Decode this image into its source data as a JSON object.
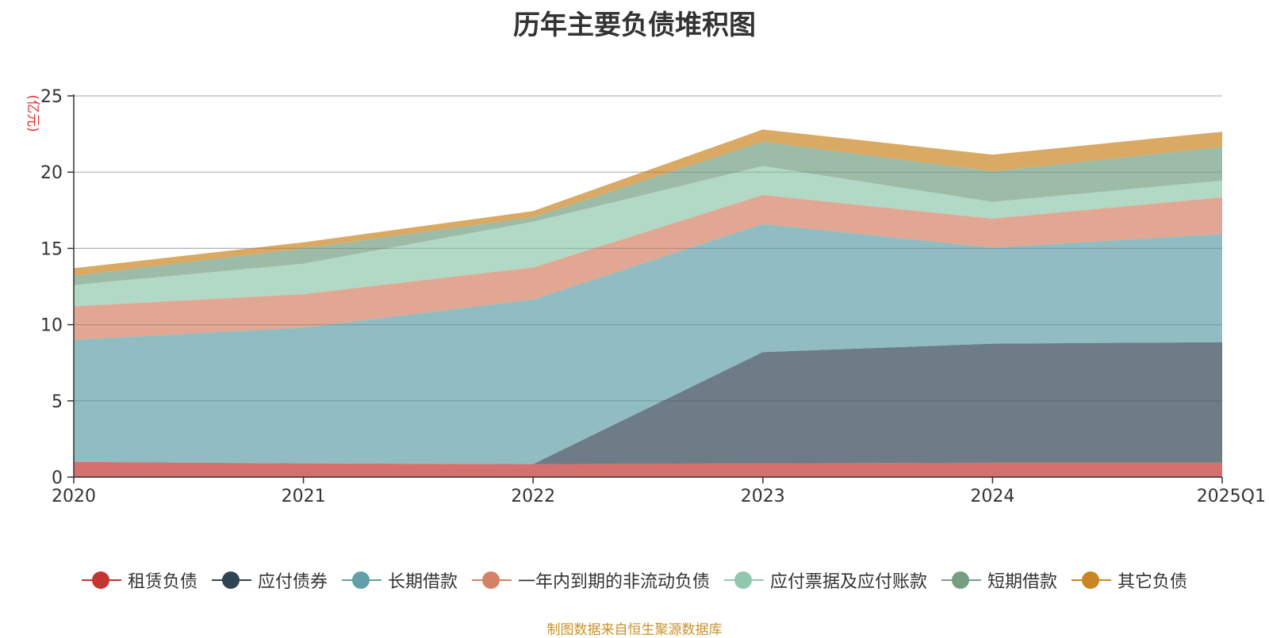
{
  "chart_data": {
    "type": "area",
    "stacked": true,
    "title": "历年主要负债堆积图",
    "ylabel": "(亿元)",
    "xlabel": "",
    "categories": [
      "2020",
      "2021",
      "2022",
      "2023",
      "2024",
      "2025Q1"
    ],
    "ylim": [
      0,
      25
    ],
    "yticks": [
      0,
      5,
      10,
      15,
      20,
      25
    ],
    "grid": true,
    "legend_position": "bottom",
    "series": [
      {
        "name": "租赁负债",
        "color": "#c23531",
        "values": [
          1.0,
          0.9,
          0.85,
          0.9,
          0.95,
          0.95
        ]
      },
      {
        "name": "应付债券",
        "color": "#2f4554",
        "values": [
          0,
          0,
          0,
          7.3,
          7.8,
          7.9
        ]
      },
      {
        "name": "长期借款",
        "color": "#61a0a8",
        "values": [
          8.0,
          8.9,
          10.8,
          8.4,
          6.3,
          7.1
        ]
      },
      {
        "name": "一年内到期的非流动负债",
        "color": "#d48265",
        "values": [
          2.2,
          2.2,
          2.1,
          1.9,
          1.9,
          2.4
        ]
      },
      {
        "name": "应付票据及应付账款",
        "color": "#91c7ae",
        "values": [
          1.4,
          2.0,
          3.0,
          1.9,
          1.1,
          1.1
        ]
      },
      {
        "name": "短期借款",
        "color": "#749f83",
        "values": [
          0.6,
          1.0,
          0.3,
          1.6,
          2.0,
          2.2
        ]
      },
      {
        "name": "其它负债",
        "color": "#ca8622",
        "values": [
          0.5,
          0.4,
          0.4,
          0.8,
          1.1,
          1.0
        ]
      }
    ]
  },
  "source_note": "制图数据来自恒生聚源数据库"
}
